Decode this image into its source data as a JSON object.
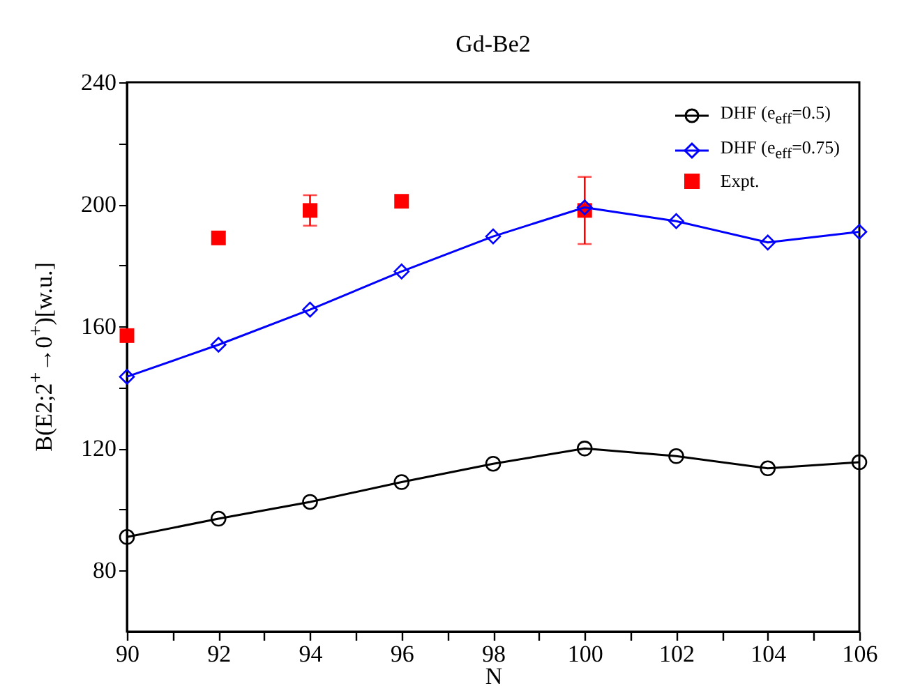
{
  "chart_data": {
    "type": "line",
    "title": "Gd-Be2",
    "xlabel": "N",
    "ylabel": "B(E2;2$^{+}$→0$^{+}$)[w.u.]",
    "x": [
      90,
      92,
      94,
      96,
      98,
      100,
      102,
      104,
      106
    ],
    "series": [
      {
        "name": "DHF (e$_{eff}$=0.5)",
        "color": "#000000",
        "marker": "circle",
        "values": [
          91,
          97,
          102.5,
          109,
          115,
          120,
          117.5,
          113.5,
          115.5
        ]
      },
      {
        "name": "DHF (e$_{eff}$=0.75)",
        "color": "#0000ff",
        "marker": "diamond",
        "values": [
          143.5,
          154,
          165.5,
          178,
          189.5,
          199,
          194.5,
          187.5,
          191
        ]
      },
      {
        "name": "Expt.",
        "type": "scatter",
        "color": "#ff0000",
        "marker": "square",
        "x": [
          90,
          92,
          94,
          96,
          100
        ],
        "values": [
          157,
          189,
          198,
          201,
          198
        ],
        "errors": [
          null,
          2,
          5,
          null,
          [
            187,
            209
          ]
        ]
      }
    ],
    "xlim": [
      90,
      106
    ],
    "xticks": [
      90,
      {
        "value": 91,
        "label": null
      },
      92,
      {
        "value": 93,
        "label": null
      },
      94,
      {
        "value": 95,
        "label": null
      },
      96,
      {
        "value": 97,
        "label": null
      },
      98,
      {
        "value": 99,
        "label": null
      },
      100,
      {
        "value": 101,
        "label": null
      },
      102,
      {
        "value": 103,
        "label": null
      },
      104,
      {
        "value": 105,
        "label": null
      },
      106
    ],
    "ylim": [
      60,
      240
    ],
    "yticks": [
      80,
      {
        "value": 100,
        "label": null
      },
      120,
      {
        "value": 140,
        "label": null
      },
      160,
      {
        "value": 180,
        "label": null
      },
      200,
      {
        "value": 220,
        "label": null
      },
      240
    ],
    "legend": "top right",
    "grid": false
  }
}
